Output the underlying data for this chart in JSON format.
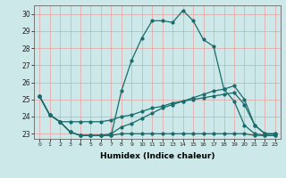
{
  "title": "",
  "xlabel": "Humidex (Indice chaleur)",
  "ylabel": "",
  "bg_color": "#cce8e8",
  "grid_color": "#e8a0a0",
  "line_color": "#1a6b6b",
  "xlim": [
    -0.5,
    23.5
  ],
  "ylim": [
    22.7,
    30.5
  ],
  "yticks": [
    23,
    24,
    25,
    26,
    27,
    28,
    29,
    30
  ],
  "xticks": [
    0,
    1,
    2,
    3,
    4,
    5,
    6,
    7,
    8,
    9,
    10,
    11,
    12,
    13,
    14,
    15,
    16,
    17,
    18,
    19,
    20,
    21,
    22,
    23
  ],
  "line1_x": [
    0,
    1,
    2,
    3,
    4,
    5,
    6,
    7,
    8,
    9,
    10,
    11,
    12,
    13,
    14,
    15,
    16,
    17,
    18,
    19,
    20,
    21,
    22,
    23
  ],
  "line1_y": [
    25.2,
    24.1,
    23.7,
    23.1,
    22.9,
    22.9,
    22.9,
    22.9,
    23.0,
    23.0,
    23.0,
    23.0,
    23.0,
    23.0,
    23.0,
    23.0,
    23.0,
    23.0,
    23.0,
    23.0,
    23.0,
    22.9,
    22.9,
    22.9
  ],
  "line2_x": [
    0,
    1,
    2,
    3,
    4,
    5,
    6,
    7,
    8,
    9,
    10,
    11,
    12,
    13,
    14,
    15,
    16,
    17,
    18,
    19,
    20,
    21,
    22,
    23
  ],
  "line2_y": [
    25.2,
    24.1,
    23.7,
    23.7,
    23.7,
    23.7,
    23.7,
    23.8,
    24.0,
    24.1,
    24.3,
    24.5,
    24.6,
    24.8,
    24.9,
    25.0,
    25.1,
    25.2,
    25.3,
    25.4,
    24.7,
    23.5,
    23.0,
    23.0
  ],
  "line3_x": [
    0,
    1,
    2,
    3,
    4,
    5,
    6,
    7,
    8,
    9,
    10,
    11,
    12,
    13,
    14,
    15,
    16,
    17,
    18,
    19,
    20,
    21,
    22,
    23
  ],
  "line3_y": [
    25.2,
    24.1,
    23.7,
    23.1,
    22.9,
    22.9,
    22.9,
    23.0,
    23.4,
    23.6,
    23.9,
    24.2,
    24.5,
    24.7,
    24.9,
    25.1,
    25.3,
    25.5,
    25.6,
    25.8,
    25.0,
    23.5,
    23.0,
    23.0
  ],
  "line4_x": [
    0,
    1,
    2,
    3,
    4,
    5,
    6,
    7,
    8,
    9,
    10,
    11,
    12,
    13,
    14,
    15,
    16,
    17,
    18,
    19,
    20,
    21,
    22,
    23
  ],
  "line4_y": [
    25.2,
    24.1,
    23.7,
    23.1,
    22.9,
    22.9,
    22.9,
    22.9,
    25.5,
    27.3,
    28.6,
    29.6,
    29.6,
    29.5,
    30.2,
    29.6,
    28.5,
    28.1,
    25.6,
    24.9,
    23.5,
    23.0,
    22.9,
    22.9
  ]
}
